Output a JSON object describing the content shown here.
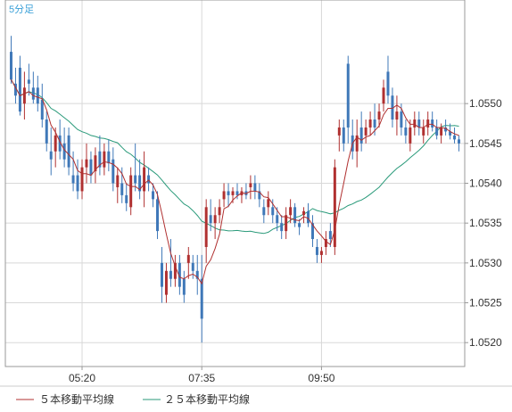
{
  "period_label": "5分足",
  "chart_data": {
    "type": "candlestick",
    "ylim": [
      1.0517,
      1.0563
    ],
    "y_ticks": [
      "1.0520",
      "1.0525",
      "1.0530",
      "1.0535",
      "1.0540",
      "1.0545",
      "1.0550"
    ],
    "x_ticks": [
      "05:20",
      "07:35",
      "09:50"
    ],
    "grid": true,
    "legend_position": "bottom",
    "colors": {
      "up": "#b03030",
      "down": "#3f78b8",
      "ma5": "#b03030",
      "ma25": "#2a9a7a",
      "grid": "#d8d8d8",
      "axis": "#999999"
    },
    "series": [
      {
        "name": "５本移動平均線",
        "color": "#b03030"
      },
      {
        "name": "２５本移動平均線",
        "color": "#2a9a7a"
      }
    ],
    "candles": [
      [
        1.05565,
        1.05585,
        1.05525,
        1.0553
      ],
      [
        1.05525,
        1.05545,
        1.055,
        1.0551
      ],
      [
        1.05545,
        1.0556,
        1.05485,
        1.0549
      ],
      [
        1.055,
        1.0554,
        1.0548,
        1.0552
      ],
      [
        1.0553,
        1.0555,
        1.0551,
        1.05525
      ],
      [
        1.0552,
        1.0554,
        1.055,
        1.05505
      ],
      [
        1.0552,
        1.05535,
        1.0549,
        1.055
      ],
      [
        1.05505,
        1.05525,
        1.0547,
        1.0548
      ],
      [
        1.0548,
        1.0549,
        1.0544,
        1.0545
      ],
      [
        1.0544,
        1.0547,
        1.0541,
        1.0543
      ],
      [
        1.0544,
        1.0547,
        1.0542,
        1.0546
      ],
      [
        1.0546,
        1.0548,
        1.0543,
        1.0544
      ],
      [
        1.0545,
        1.0547,
        1.0542,
        1.0543
      ],
      [
        1.0546,
        1.0547,
        1.0541,
        1.0542
      ],
      [
        1.0541,
        1.0544,
        1.0539,
        1.054
      ],
      [
        1.0541,
        1.0543,
        1.0538,
        1.0539
      ],
      [
        1.0539,
        1.0543,
        1.0538,
        1.0542
      ],
      [
        1.0542,
        1.0545,
        1.054,
        1.0543
      ],
      [
        1.0543,
        1.0544,
        1.054,
        1.0541
      ],
      [
        1.05415,
        1.05445,
        1.054,
        1.05435
      ],
      [
        1.0544,
        1.0546,
        1.0541,
        1.0542
      ],
      [
        1.0542,
        1.0545,
        1.0541,
        1.0544
      ],
      [
        1.0544,
        1.05455,
        1.05415,
        1.05425
      ],
      [
        1.0543,
        1.05445,
        1.0539,
        1.054
      ],
      [
        1.05395,
        1.0542,
        1.05375,
        1.0541
      ],
      [
        1.054,
        1.0542,
        1.05375,
        1.05385
      ],
      [
        1.05385,
        1.054,
        1.05365,
        1.05375
      ],
      [
        1.0537,
        1.0542,
        1.0536,
        1.0541
      ],
      [
        1.0541,
        1.0545,
        1.0539,
        1.054
      ],
      [
        1.0541,
        1.0543,
        1.0538,
        1.0539
      ],
      [
        1.0539,
        1.0544,
        1.0537,
        1.0542
      ],
      [
        1.0541,
        1.0542,
        1.0539,
        1.054
      ],
      [
        1.0539,
        1.054,
        1.0537,
        1.0538
      ],
      [
        1.0538,
        1.0539,
        1.0533,
        1.0534
      ],
      [
        1.053,
        1.0532,
        1.0525,
        1.0527
      ],
      [
        1.0526,
        1.053,
        1.0525,
        1.0529
      ],
      [
        1.0529,
        1.0533,
        1.0527,
        1.0528
      ],
      [
        1.0528,
        1.0531,
        1.0527,
        1.053
      ],
      [
        1.053,
        1.0531,
        1.0526,
        1.0527
      ],
      [
        1.0528,
        1.0529,
        1.0525,
        1.0526
      ],
      [
        1.053,
        1.0532,
        1.0528,
        1.0531
      ],
      [
        1.053,
        1.0531,
        1.0528,
        1.0529
      ],
      [
        1.0529,
        1.0531,
        1.0526,
        1.0528
      ],
      [
        1.0528,
        1.0531,
        1.052,
        1.0523
      ],
      [
        1.0532,
        1.0538,
        1.053,
        1.0537
      ],
      [
        1.0536,
        1.0538,
        1.0534,
        1.0535
      ],
      [
        1.0535,
        1.0537,
        1.0533,
        1.0536
      ],
      [
        1.0536,
        1.0538,
        1.0535,
        1.0537
      ],
      [
        1.0538,
        1.054,
        1.0537,
        1.0539
      ],
      [
        1.0539,
        1.054,
        1.0537,
        1.05385
      ],
      [
        1.05385,
        1.05395,
        1.05375,
        1.0539
      ],
      [
        1.0539,
        1.054,
        1.0538,
        1.05385
      ],
      [
        1.05385,
        1.05395,
        1.05375,
        1.0539
      ],
      [
        1.0539,
        1.054,
        1.0538,
        1.05385
      ],
      [
        1.05395,
        1.0541,
        1.0538,
        1.054
      ],
      [
        1.054,
        1.0541,
        1.0538,
        1.0539
      ],
      [
        1.0539,
        1.054,
        1.0537,
        1.0538
      ],
      [
        1.0537,
        1.0538,
        1.0535,
        1.0536
      ],
      [
        1.0537,
        1.0539,
        1.0536,
        1.0538
      ],
      [
        1.0537,
        1.0538,
        1.0535,
        1.0536
      ],
      [
        1.0536,
        1.0537,
        1.0534,
        1.0535
      ],
      [
        1.0535,
        1.0536,
        1.0533,
        1.0534
      ],
      [
        1.0534,
        1.0537,
        1.0533,
        1.0536
      ],
      [
        1.0536,
        1.0538,
        1.0535,
        1.0537
      ],
      [
        1.0537,
        1.05375,
        1.05345,
        1.0535
      ],
      [
        1.0535,
        1.05355,
        1.05335,
        1.05345
      ],
      [
        1.0536,
        1.0537,
        1.0535,
        1.05365
      ],
      [
        1.05365,
        1.05375,
        1.05345,
        1.0535
      ],
      [
        1.0535,
        1.0536,
        1.0532,
        1.0533
      ],
      [
        1.0532,
        1.0533,
        1.053,
        1.0531
      ],
      [
        1.0531,
        1.0532,
        1.053,
        1.05315
      ],
      [
        1.0532,
        1.0534,
        1.0531,
        1.0533
      ],
      [
        1.0534,
        1.0535,
        1.0532,
        1.0533
      ],
      [
        1.0532,
        1.0543,
        1.0531,
        1.0542
      ],
      [
        1.0546,
        1.0548,
        1.0544,
        1.0547
      ],
      [
        1.0547,
        1.0548,
        1.0544,
        1.0545
      ],
      [
        1.0555,
        1.0556,
        1.0545,
        1.0547
      ],
      [
        1.0546,
        1.0548,
        1.0543,
        1.0544
      ],
      [
        1.0544,
        1.0548,
        1.0542,
        1.0546
      ],
      [
        1.0547,
        1.0549,
        1.0544,
        1.0545
      ],
      [
        1.0546,
        1.0548,
        1.0545,
        1.0547
      ],
      [
        1.0547,
        1.0549,
        1.0546,
        1.0548
      ],
      [
        1.0548,
        1.055,
        1.0546,
        1.0547
      ],
      [
        1.0548,
        1.055,
        1.0547,
        1.0549
      ],
      [
        1.055,
        1.0553,
        1.0549,
        1.0552
      ],
      [
        1.0554,
        1.0556,
        1.055,
        1.0551
      ],
      [
        1.0551,
        1.0552,
        1.0547,
        1.0548
      ],
      [
        1.0548,
        1.0551,
        1.0546,
        1.0549
      ],
      [
        1.0549,
        1.055,
        1.0546,
        1.0547
      ],
      [
        1.0547,
        1.0548,
        1.0545,
        1.0546
      ],
      [
        1.0545,
        1.0548,
        1.0544,
        1.0547
      ],
      [
        1.0547,
        1.0549,
        1.0546,
        1.0548
      ],
      [
        1.0548,
        1.0549,
        1.0546,
        1.0547
      ],
      [
        1.0546,
        1.0548,
        1.0545,
        1.0547
      ],
      [
        1.0547,
        1.0549,
        1.0546,
        1.0548
      ],
      [
        1.0548,
        1.0549,
        1.05465,
        1.0547
      ],
      [
        1.0547,
        1.0548,
        1.05455,
        1.0546
      ],
      [
        1.0546,
        1.05475,
        1.0545,
        1.0547
      ],
      [
        1.0547,
        1.0548,
        1.0546,
        1.05465
      ],
      [
        1.05465,
        1.05475,
        1.05455,
        1.0546
      ],
      [
        1.0546,
        1.0547,
        1.0545,
        1.05455
      ],
      [
        1.05455,
        1.0546,
        1.0544,
        1.0545
      ]
    ]
  }
}
